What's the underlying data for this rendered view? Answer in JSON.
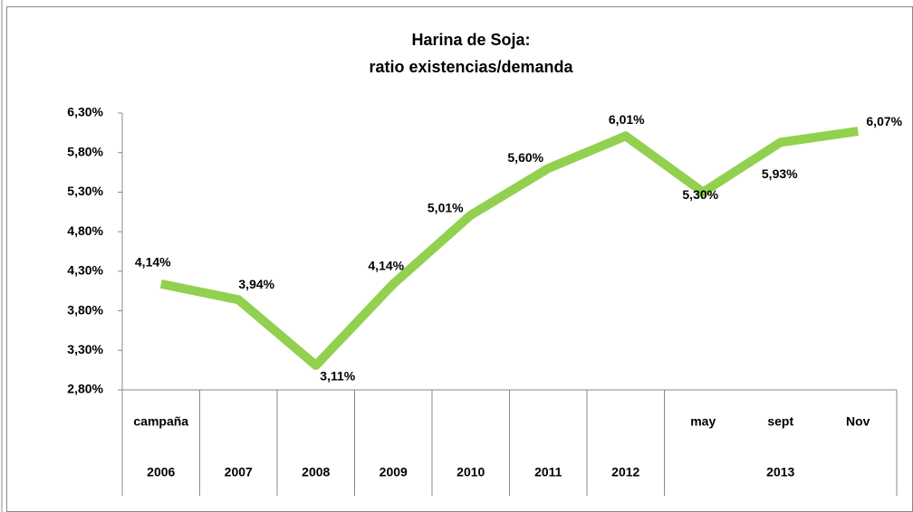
{
  "chart_data": {
    "type": "line",
    "title": "Harina de Soja:",
    "subtitle": "ratio existencias/demanda",
    "categories": [
      "campaña",
      null,
      null,
      null,
      null,
      null,
      null,
      "may",
      "sept",
      "Nov"
    ],
    "category_groups": [
      {
        "label": "2006",
        "count": 1
      },
      {
        "label": "2007",
        "count": 1
      },
      {
        "label": "2008",
        "count": 1
      },
      {
        "label": "2009",
        "count": 1
      },
      {
        "label": "2010",
        "count": 1
      },
      {
        "label": "2011",
        "count": 1
      },
      {
        "label": "2012",
        "count": 1
      },
      {
        "label": "2013",
        "count": 3
      }
    ],
    "values": [
      4.14,
      3.94,
      3.11,
      4.14,
      5.01,
      5.6,
      6.01,
      5.3,
      5.93,
      6.07
    ],
    "value_labels": [
      "4,14%",
      "3,94%",
      "3,11%",
      "4,14%",
      "5,01%",
      "5,60%",
      "6,01%",
      "5,30%",
      "5,93%",
      "6,07%"
    ],
    "color": "#92d050",
    "ylim": [
      2.8,
      6.3
    ],
    "yticks": [
      {
        "value": 2.8,
        "label": "2,80%"
      },
      {
        "value": 3.3,
        "label": "3,30%"
      },
      {
        "value": 3.8,
        "label": "3,80%"
      },
      {
        "value": 4.3,
        "label": "4,30%"
      },
      {
        "value": 4.8,
        "label": "4,80%"
      },
      {
        "value": 5.3,
        "label": "5,30%"
      },
      {
        "value": 5.8,
        "label": "5,80%"
      },
      {
        "value": 6.3,
        "label": "6,30%"
      }
    ]
  }
}
